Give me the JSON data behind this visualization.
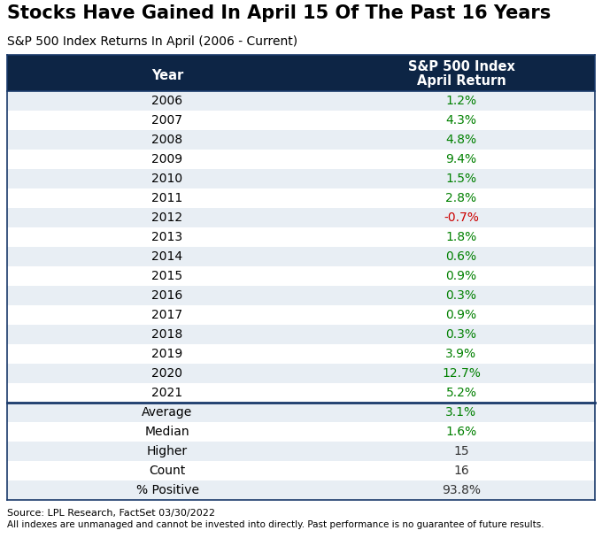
{
  "title": "Stocks Have Gained In April 15 Of The Past 16 Years",
  "subtitle": "S&P 500 Index Returns In April (2006 - Current)",
  "col1_header": "Year",
  "col2_header_line1": "S&P 500 Index",
  "col2_header_line2": "April Return",
  "years": [
    "2006",
    "2007",
    "2008",
    "2009",
    "2010",
    "2011",
    "2012",
    "2013",
    "2014",
    "2015",
    "2016",
    "2017",
    "2018",
    "2019",
    "2020",
    "2021"
  ],
  "returns": [
    "1.2%",
    "4.3%",
    "4.8%",
    "9.4%",
    "1.5%",
    "2.8%",
    "-0.7%",
    "1.8%",
    "0.6%",
    "0.9%",
    "0.3%",
    "0.9%",
    "0.3%",
    "3.9%",
    "12.7%",
    "5.2%"
  ],
  "return_colors": [
    "#008000",
    "#008000",
    "#008000",
    "#008000",
    "#008000",
    "#008000",
    "#cc0000",
    "#008000",
    "#008000",
    "#008000",
    "#008000",
    "#008000",
    "#008000",
    "#008000",
    "#008000",
    "#008000"
  ],
  "summary_labels": [
    "Average",
    "Median",
    "Higher",
    "Count",
    "% Positive"
  ],
  "summary_values": [
    "3.1%",
    "1.6%",
    "15",
    "16",
    "93.8%"
  ],
  "summary_colors": [
    "#008000",
    "#008000",
    "#333333",
    "#333333",
    "#333333"
  ],
  "header_bg": "#0d2545",
  "header_text": "#ffffff",
  "row_bg_even": "#e8eef4",
  "row_bg_odd": "#ffffff",
  "border_color": "#1a3a6b",
  "source_text": "Source: LPL Research, FactSet 03/30/2022",
  "disclaimer_text": "All indexes are unmanaged and cannot be invested into directly. Past performance is no guarantee of future results.",
  "title_fontsize": 15,
  "subtitle_fontsize": 10,
  "body_fontsize": 10,
  "header_fontsize": 10.5
}
